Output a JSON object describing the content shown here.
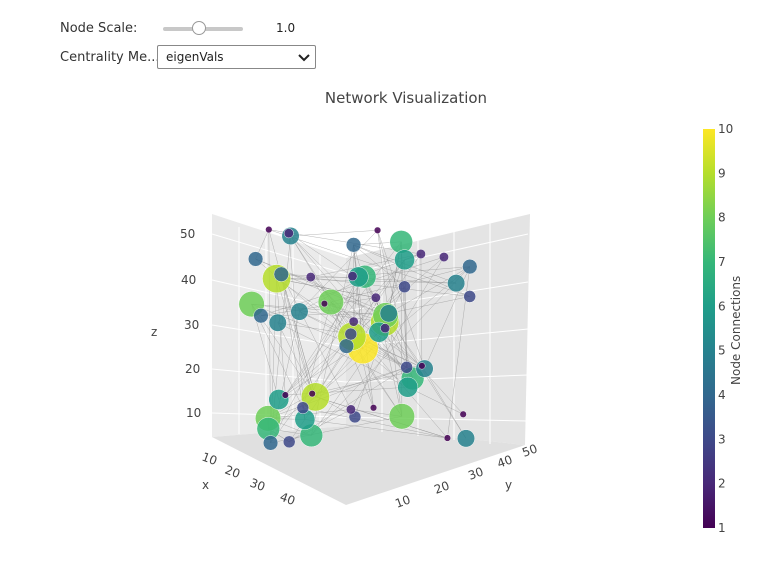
{
  "controls": {
    "node_scale_label": "Node Scale:",
    "node_scale_value": "1.0",
    "node_scale_fraction": 0.45,
    "centrality_label": "Centrality Me...",
    "centrality_selected": "eigenVals"
  },
  "chart_data": {
    "type": "scatter3d",
    "title": "Network Visualization",
    "axes": {
      "x": {
        "label": "x",
        "ticks": [
          "10",
          "20",
          "30",
          "40"
        ]
      },
      "y": {
        "label": "y",
        "ticks": [
          "10",
          "20",
          "30",
          "40",
          "50"
        ]
      },
      "z": {
        "label": "z",
        "ticks": [
          "10",
          "20",
          "30",
          "40",
          "50"
        ]
      }
    },
    "colorbar": {
      "title": "Node Connections",
      "ticks": [
        "1",
        "2",
        "3",
        "4",
        "5",
        "6",
        "7",
        "8",
        "9",
        "10"
      ],
      "range": [
        1,
        10
      ],
      "colorscale": [
        "#440154",
        "#482878",
        "#3e4989",
        "#31688e",
        "#26828e",
        "#1f9e89",
        "#35b779",
        "#6ece58",
        "#b5de2b",
        "#fde725"
      ]
    },
    "nodes_connections": [
      10,
      9,
      9,
      8,
      8,
      9,
      7,
      7,
      6,
      6,
      5,
      5,
      5,
      4,
      4,
      3,
      3,
      2,
      2,
      1,
      8,
      7,
      6,
      6,
      5,
      5,
      4,
      4,
      4,
      3,
      3,
      3,
      2,
      2,
      2,
      2,
      1,
      1,
      1,
      1,
      1,
      1,
      5,
      6,
      7,
      8,
      9,
      4,
      3,
      2,
      6,
      5,
      4,
      7,
      8,
      3,
      2,
      1,
      1,
      2
    ],
    "edges": "many thin gray links between nodes"
  }
}
